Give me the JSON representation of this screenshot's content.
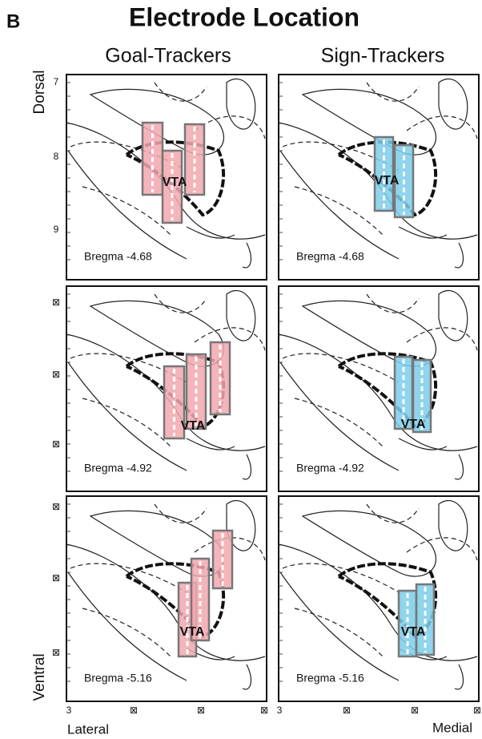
{
  "panel_label": "B",
  "title": "Electrode Location",
  "columns": [
    "Goal-Trackers",
    "Sign-Trackers"
  ],
  "axis_labels": {
    "dorsal": "Dorsal",
    "ventral": "Ventral",
    "lateral": "Lateral",
    "medial": "Medial"
  },
  "y_ticks": [
    "7",
    "8",
    "9",
    "⊠",
    "⊠",
    "⊠",
    "⊠",
    "⊠",
    "⊠"
  ],
  "x_ticks": [
    "3",
    "⊠",
    "⊠",
    "⊠",
    "3",
    "⊠",
    "⊠",
    "⊠"
  ],
  "panels": [
    {
      "bregma": "Bregma -4.68",
      "region": "VTA"
    },
    {
      "bregma": "Bregma -4.68",
      "region": "VTA"
    },
    {
      "bregma": "Bregma -4.92",
      "region": "VTA"
    },
    {
      "bregma": "Bregma -4.92",
      "region": "VTA"
    },
    {
      "bregma": "Bregma -5.16",
      "region": "VTA"
    },
    {
      "bregma": "Bregma -5.16",
      "region": "VTA"
    }
  ]
}
